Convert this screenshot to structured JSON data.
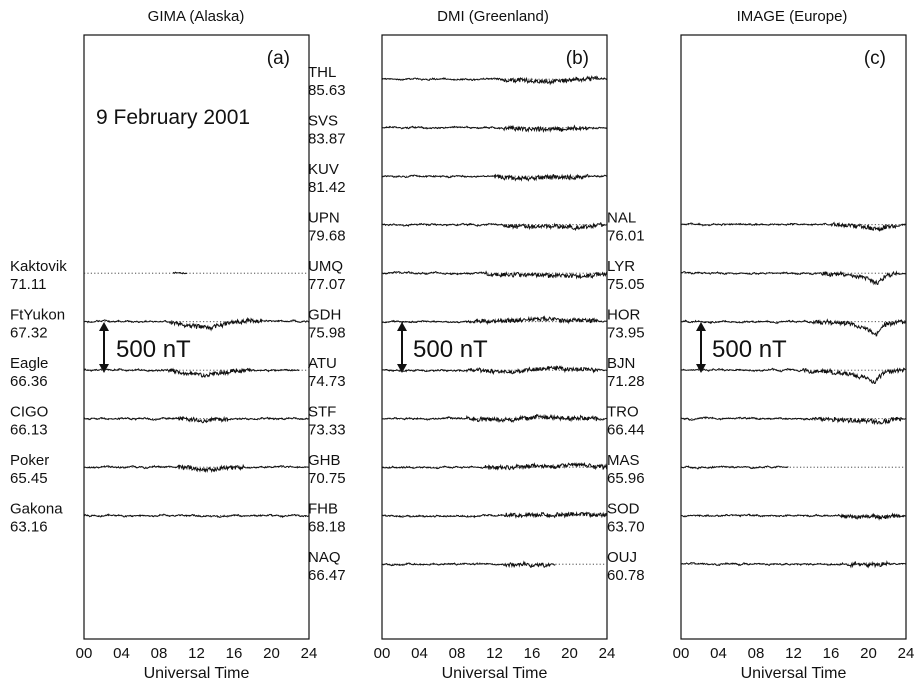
{
  "figure": {
    "date": "9 February 2001",
    "scale_bar": "500 nT",
    "xlabel": "Universal Time",
    "xticks": [
      "00",
      "04",
      "08",
      "12",
      "16",
      "20",
      "24"
    ]
  },
  "chart_data": [
    {
      "type": "line",
      "title": "GIMA (Alaska)",
      "panel_label": "(a)",
      "xlabel": "Universal Time",
      "xlim": [
        0,
        24
      ],
      "x_unit": "UT hours",
      "scale_bar_nT": 500,
      "stations": [
        {
          "name": "Kaktovik",
          "lat": "71.11",
          "slot": 5,
          "data_ut": [
            9.5,
            11.0
          ],
          "dist": []
        },
        {
          "name": "FtYukon",
          "lat": "67.32",
          "slot": 6,
          "data_ut": [
            0,
            24
          ],
          "dist": [
            [
              10.0,
              -25
            ],
            [
              12.0,
              -45
            ],
            [
              13.5,
              -70
            ],
            [
              15.0,
              -25
            ],
            [
              16.5,
              10
            ],
            [
              18.0,
              5
            ]
          ]
        },
        {
          "name": "Eagle",
          "lat": "66.36",
          "slot": 7,
          "data_ut": [
            0,
            23
          ],
          "dist": [
            [
              10.0,
              -15
            ],
            [
              12.0,
              -40
            ],
            [
              13.0,
              -65
            ],
            [
              14.2,
              -35
            ],
            [
              15.5,
              -10
            ],
            [
              17.0,
              8
            ]
          ]
        },
        {
          "name": "CIGO",
          "lat": "66.13",
          "slot": 8,
          "data_ut": [
            0,
            24
          ],
          "dist": [
            [
              11.0,
              -10
            ],
            [
              13.0,
              -25
            ],
            [
              14.5,
              -8
            ]
          ]
        },
        {
          "name": "Poker",
          "lat": "65.45",
          "slot": 9,
          "data_ut": [
            0,
            24
          ],
          "dist": [
            [
              11.0,
              -12
            ],
            [
              13.0,
              -35
            ],
            [
              14.5,
              -10
            ],
            [
              16.0,
              5
            ]
          ]
        },
        {
          "name": "Gakona",
          "lat": "63.16",
          "slot": 10,
          "data_ut": [
            0,
            24
          ],
          "dist": []
        }
      ]
    },
    {
      "type": "line",
      "title": "DMI (Greenland)",
      "panel_label": "(b)",
      "xlabel": "Universal Time",
      "xlim": [
        0,
        24
      ],
      "x_unit": "UT hours",
      "scale_bar_nT": 500,
      "stations": [
        {
          "name": "THL",
          "lat": "85.63",
          "slot": 1,
          "data_ut": [
            0,
            24
          ],
          "dist": [
            [
              14.0,
              -5
            ],
            [
              16.0,
              -20
            ],
            [
              18.0,
              -30
            ],
            [
              20.0,
              -10
            ],
            [
              22.0,
              10
            ]
          ]
        },
        {
          "name": "SVS",
          "lat": "83.87",
          "slot": 2,
          "data_ut": [
            0,
            24
          ],
          "dist": [
            [
              14.0,
              -8
            ],
            [
              16.0,
              -22
            ],
            [
              18.0,
              -20
            ],
            [
              21.0,
              -8
            ]
          ]
        },
        {
          "name": "KUV",
          "lat": "81.42",
          "slot": 3,
          "data_ut": [
            0,
            24
          ],
          "dist": [
            [
              13.0,
              -10
            ],
            [
              16.0,
              -25
            ],
            [
              18.0,
              -15
            ],
            [
              21.0,
              -5
            ]
          ]
        },
        {
          "name": "UPN",
          "lat": "79.68",
          "slot": 4,
          "data_ut": [
            0,
            24
          ],
          "dist": [
            [
              14.0,
              -10
            ],
            [
              16.5,
              -25
            ],
            [
              19.0,
              -15
            ],
            [
              21.0,
              -30
            ],
            [
              22.5,
              -10
            ]
          ]
        },
        {
          "name": "UMQ",
          "lat": "77.07",
          "slot": 5,
          "data_ut": [
            0,
            24
          ],
          "dist": [
            [
              12.0,
              -8
            ],
            [
              15.0,
              -20
            ],
            [
              18.0,
              -25
            ],
            [
              21.0,
              -40
            ],
            [
              23.0,
              -15
            ]
          ]
        },
        {
          "name": "GDH",
          "lat": "75.98",
          "slot": 6,
          "data_ut": [
            0,
            24
          ],
          "dist": [
            [
              10.0,
              5
            ],
            [
              14.0,
              15
            ],
            [
              18.0,
              30
            ],
            [
              20.0,
              10
            ],
            [
              22.0,
              20
            ]
          ]
        },
        {
          "name": "ATU",
          "lat": "74.73",
          "slot": 7,
          "data_ut": [
            0,
            24
          ],
          "dist": [
            [
              10.0,
              -5
            ],
            [
              14.0,
              -15
            ],
            [
              16.0,
              10
            ],
            [
              18.0,
              25
            ],
            [
              20.0,
              10
            ],
            [
              22.0,
              15
            ]
          ]
        },
        {
          "name": "STF",
          "lat": "73.33",
          "slot": 8,
          "data_ut": [
            0,
            24
          ],
          "dist": [
            [
              10.0,
              -5
            ],
            [
              14.0,
              -15
            ],
            [
              16.0,
              10
            ],
            [
              18.0,
              15
            ],
            [
              20.0,
              5
            ],
            [
              22.0,
              10
            ]
          ]
        },
        {
          "name": "GHB",
          "lat": "70.75",
          "slot": 9,
          "data_ut": [
            0,
            24
          ],
          "dist": [
            [
              12.0,
              -5
            ],
            [
              16.0,
              8
            ],
            [
              19.0,
              15
            ],
            [
              21.0,
              25
            ],
            [
              23.0,
              8
            ]
          ]
        },
        {
          "name": "FHB",
          "lat": "68.18",
          "slot": 10,
          "data_ut": [
            0,
            24
          ],
          "dist": [
            [
              14.0,
              5
            ],
            [
              18.0,
              10
            ],
            [
              21.0,
              25
            ],
            [
              23.0,
              8
            ]
          ]
        },
        {
          "name": "NAQ",
          "lat": "66.47",
          "slot": 11,
          "data_ut": [
            0,
            18.5
          ],
          "dist": [
            [
              14.0,
              -3
            ],
            [
              17.0,
              -5
            ]
          ]
        }
      ]
    },
    {
      "type": "line",
      "title": "IMAGE (Europe)",
      "panel_label": "(c)",
      "xlabel": "Universal Time",
      "xlim": [
        0,
        24
      ],
      "x_unit": "UT hours",
      "scale_bar_nT": 500,
      "stations": [
        {
          "name": "NAL",
          "lat": "76.01",
          "slot": 4,
          "data_ut": [
            0,
            24
          ],
          "dist": [
            [
              17.0,
              -8
            ],
            [
              19.0,
              -15
            ],
            [
              20.5,
              -35
            ],
            [
              21.2,
              -55
            ],
            [
              22.0,
              -10
            ]
          ]
        },
        {
          "name": "LYR",
          "lat": "75.05",
          "slot": 5,
          "data_ut": [
            0,
            24
          ],
          "dist": [
            [
              16.0,
              -10
            ],
            [
              18.0,
              -20
            ],
            [
              20.0,
              -60
            ],
            [
              21.0,
              -110
            ],
            [
              22.0,
              -20
            ]
          ]
        },
        {
          "name": "HOR",
          "lat": "73.95",
          "slot": 6,
          "data_ut": [
            0,
            24
          ],
          "dist": [
            [
              15.0,
              -10
            ],
            [
              18.0,
              -20
            ],
            [
              19.8,
              -80
            ],
            [
              20.8,
              -150
            ],
            [
              21.6,
              -40
            ],
            [
              23.0,
              -5
            ]
          ]
        },
        {
          "name": "BJN",
          "lat": "71.28",
          "slot": 7,
          "data_ut": [
            0,
            24
          ],
          "dist": [
            [
              14.0,
              -10
            ],
            [
              17.0,
              -30
            ],
            [
              19.5,
              -80
            ],
            [
              20.6,
              -140
            ],
            [
              21.5,
              -40
            ],
            [
              23.0,
              -5
            ]
          ]
        },
        {
          "name": "TRO",
          "lat": "66.44",
          "slot": 8,
          "data_ut": [
            0,
            24
          ],
          "dist": [
            [
              15.0,
              -5
            ],
            [
              18.0,
              -15
            ],
            [
              20.0,
              -25
            ],
            [
              21.2,
              -40
            ],
            [
              22.5,
              -10
            ]
          ]
        },
        {
          "name": "MAS",
          "lat": "65.96",
          "slot": 9,
          "data_ut": [
            0,
            11.5
          ],
          "dist": []
        },
        {
          "name": "SOD",
          "lat": "63.70",
          "slot": 10,
          "data_ut": [
            0,
            24
          ],
          "dist": [
            [
              18.0,
              -5
            ],
            [
              21.0,
              -15
            ],
            [
              22.5,
              -5
            ]
          ]
        },
        {
          "name": "OUJ",
          "lat": "60.78",
          "slot": 11,
          "data_ut": [
            0,
            24
          ],
          "dist": [
            [
              19.0,
              -3
            ],
            [
              21.0,
              -8
            ]
          ]
        }
      ]
    }
  ]
}
